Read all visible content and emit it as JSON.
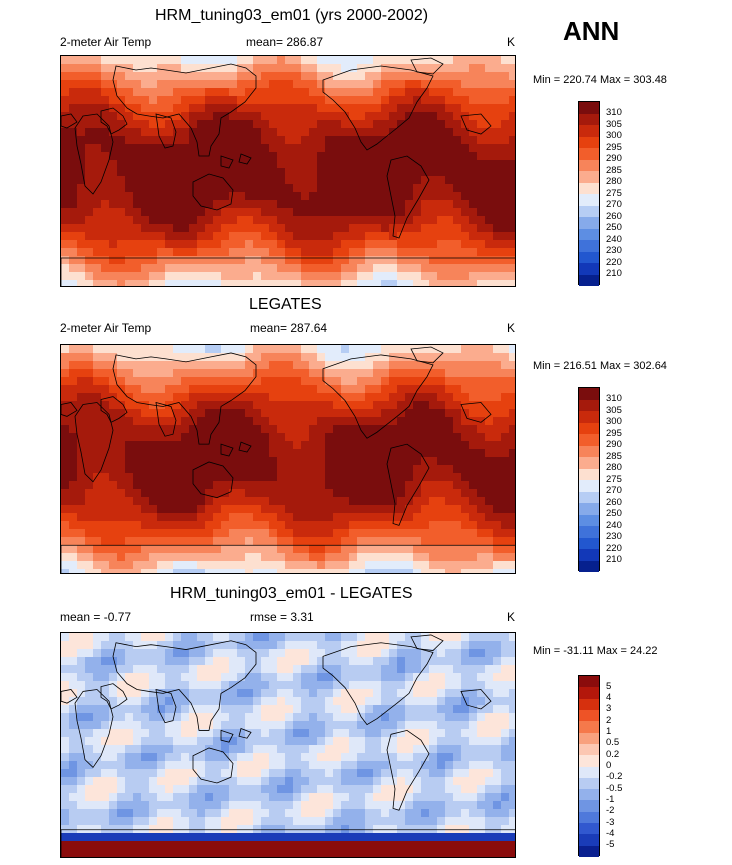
{
  "season": "ANN",
  "panels": [
    {
      "title": "HRM_tuning03_em01 (yrs 2000-2002)",
      "left_label": "2-meter Air Temp",
      "center_label": "mean= 286.87",
      "units": "K",
      "minmax": "Min = 220.74 Max = 303.48",
      "field": "model",
      "colorbar": {
        "labels": [
          "310",
          "305",
          "300",
          "295",
          "290",
          "285",
          "280",
          "275",
          "270",
          "260",
          "250",
          "240",
          "230",
          "220",
          "210"
        ],
        "colors": [
          "#7a0d0d",
          "#a51a0c",
          "#c92a0c",
          "#e6410f",
          "#f25e2b",
          "#f7845a",
          "#fbac8e",
          "#fde0d0",
          "#e2ecfb",
          "#b6cdf4",
          "#86aaea",
          "#5d8ee3",
          "#3f72da",
          "#2257cf",
          "#1238b8",
          "#06208e"
        ]
      }
    },
    {
      "title": "LEGATES",
      "left_label": "2-meter Air Temp",
      "center_label": "mean= 287.64",
      "units": "K",
      "minmax": "Min = 216.51 Max = 302.64",
      "field": "obs",
      "colorbar": {
        "labels": [
          "310",
          "305",
          "300",
          "295",
          "290",
          "285",
          "280",
          "275",
          "270",
          "260",
          "250",
          "240",
          "230",
          "220",
          "210"
        ],
        "colors": [
          "#7a0d0d",
          "#a51a0c",
          "#c92a0c",
          "#e6410f",
          "#f25e2b",
          "#f7845a",
          "#fbac8e",
          "#fde0d0",
          "#e2ecfb",
          "#b6cdf4",
          "#86aaea",
          "#5d8ee3",
          "#3f72da",
          "#2257cf",
          "#1238b8",
          "#06208e"
        ]
      }
    },
    {
      "title": "HRM_tuning03_em01 - LEGATES",
      "left_label": "mean =  -0.77",
      "center_label": "rmse =   3.31",
      "units": "K",
      "minmax": "Min = -31.11 Max =  24.22",
      "field": "diff",
      "colorbar": {
        "labels": [
          "5",
          "4",
          "3",
          "2",
          "1",
          "0.5",
          "0.2",
          "0",
          "-0.2",
          "-0.5",
          "-1",
          "-2",
          "-3",
          "-4",
          "-5"
        ],
        "colors": [
          "#8a0c0c",
          "#b3170b",
          "#d6300e",
          "#ee5326",
          "#f5794b",
          "#f8a17e",
          "#fcc7b2",
          "#fde5da",
          "#dfe8f9",
          "#b8ccf2",
          "#93b1eb",
          "#6f95e3",
          "#4f79db",
          "#3158cf",
          "#1a3cb8",
          "#0a2090"
        ]
      }
    }
  ]
}
